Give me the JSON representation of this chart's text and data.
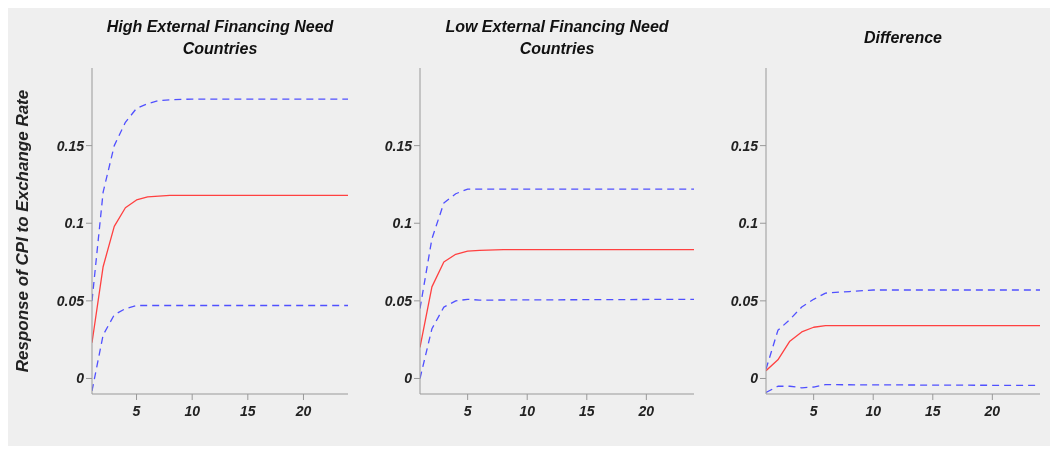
{
  "chart_data": [
    {
      "type": "line",
      "title": "High External Financing Need Countries",
      "ylabel": "Response of CPI to Exchange Rate",
      "xlim": [
        1,
        24
      ],
      "xticks": [
        5,
        10,
        15,
        20
      ],
      "ylim": [
        -0.01,
        0.2
      ],
      "yticks": [
        0,
        0.05,
        0.1,
        0.15
      ],
      "grid": false,
      "legend": false,
      "series": [
        {
          "color": "#5050ff",
          "line_style": "dashed",
          "x": [
            1,
            2,
            3,
            4,
            5,
            6,
            7,
            8,
            10,
            24
          ],
          "values": [
            0.05,
            0.12,
            0.15,
            0.165,
            0.174,
            0.177,
            0.179,
            0.1795,
            0.18,
            0.18
          ]
        },
        {
          "color": "#ff4040",
          "line_style": "solid",
          "x": [
            1,
            2,
            3,
            4,
            5,
            6,
            7,
            8,
            24
          ],
          "values": [
            0.023,
            0.072,
            0.098,
            0.11,
            0.115,
            0.117,
            0.1175,
            0.118,
            0.118
          ]
        },
        {
          "color": "#5050ff",
          "line_style": "dashed",
          "x": [
            1,
            2,
            3,
            4,
            5,
            6,
            24
          ],
          "values": [
            -0.008,
            0.028,
            0.041,
            0.045,
            0.047,
            0.047,
            0.047
          ]
        }
      ]
    },
    {
      "type": "line",
      "title": "Low External Financing Need Countries",
      "xlim": [
        1,
        24
      ],
      "xticks": [
        5,
        10,
        15,
        20
      ],
      "ylim": [
        -0.01,
        0.2
      ],
      "yticks": [
        0,
        0.05,
        0.1,
        0.15
      ],
      "grid": false,
      "legend": false,
      "series": [
        {
          "color": "#5050ff",
          "line_style": "dashed",
          "x": [
            1,
            2,
            3,
            4,
            5,
            24
          ],
          "values": [
            0.045,
            0.09,
            0.113,
            0.119,
            0.122,
            0.122
          ]
        },
        {
          "color": "#ff4040",
          "line_style": "solid",
          "x": [
            1,
            2,
            3,
            4,
            5,
            6,
            8,
            24
          ],
          "values": [
            0.02,
            0.059,
            0.075,
            0.08,
            0.082,
            0.0825,
            0.083,
            0.083
          ]
        },
        {
          "color": "#5050ff",
          "line_style": "dashed",
          "x": [
            1,
            2,
            3,
            4,
            5,
            6,
            24
          ],
          "values": [
            0.0,
            0.032,
            0.046,
            0.05,
            0.051,
            0.0505,
            0.051
          ]
        }
      ]
    },
    {
      "type": "line",
      "title": "Difference",
      "xlim": [
        1,
        24
      ],
      "xticks": [
        5,
        10,
        15,
        20
      ],
      "ylim": [
        -0.01,
        0.2
      ],
      "yticks": [
        0,
        0.05,
        0.1,
        0.15
      ],
      "grid": false,
      "legend": false,
      "series": [
        {
          "color": "#5050ff",
          "line_style": "dashed",
          "x": [
            1,
            2,
            3,
            4,
            5,
            6,
            8,
            10,
            24
          ],
          "values": [
            0.006,
            0.031,
            0.038,
            0.046,
            0.051,
            0.055,
            0.056,
            0.057,
            0.057
          ]
        },
        {
          "color": "#ff4040",
          "line_style": "solid",
          "x": [
            1,
            2,
            3,
            4,
            5,
            6,
            24
          ],
          "values": [
            0.005,
            0.012,
            0.024,
            0.03,
            0.033,
            0.034,
            0.034
          ]
        },
        {
          "color": "#5050ff",
          "line_style": "dashed",
          "x": [
            1,
            2,
            3,
            4,
            5,
            6,
            24
          ],
          "values": [
            -0.009,
            -0.005,
            -0.005,
            -0.006,
            -0.0055,
            -0.004,
            -0.0045
          ]
        }
      ]
    }
  ]
}
